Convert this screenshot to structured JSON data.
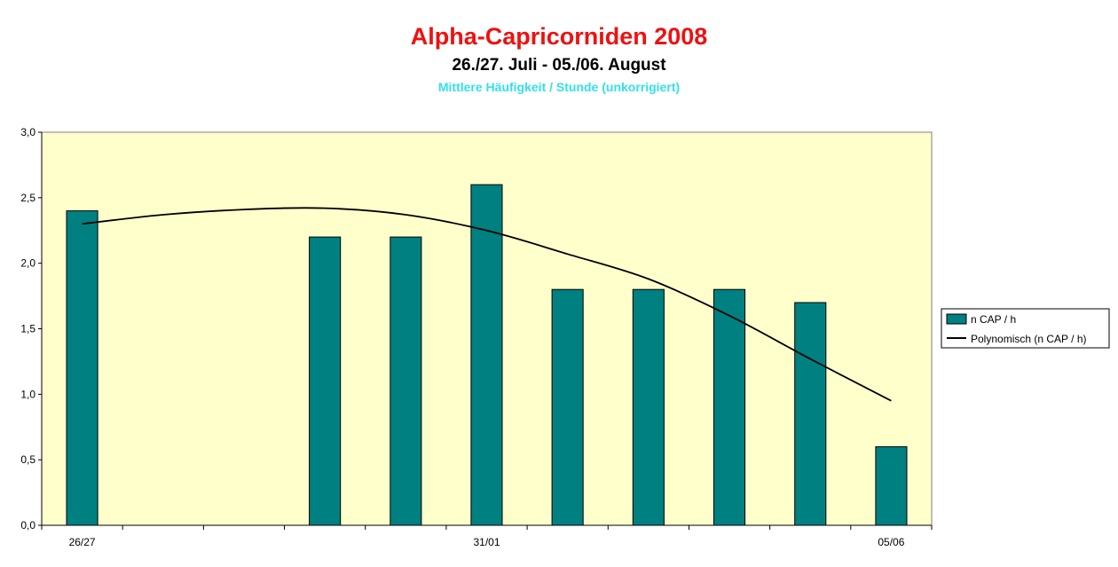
{
  "chart_data": {
    "type": "bar",
    "title": "Alpha-Capricorniden 2008",
    "subtitle": "26./27. Juli - 05./06. August",
    "subtitle2": "Mittlere Häufigkeit / Stunde (unkorrigiert)",
    "categories": [
      "26/27",
      "",
      "",
      "",
      "",
      "31/01",
      "",
      "",
      "",
      "",
      "05/06"
    ],
    "x_tick_labels": [
      "26/27",
      "31/01",
      "05/06"
    ],
    "series": [
      {
        "name": "n CAP / h",
        "values": [
          2.4,
          null,
          null,
          2.2,
          2.2,
          2.6,
          1.8,
          1.8,
          1.8,
          1.7,
          0.6
        ]
      }
    ],
    "trendline": {
      "name": "Polynomisch (n CAP / h)",
      "values": [
        2.3,
        2.37,
        2.41,
        2.42,
        2.37,
        2.25,
        2.07,
        1.88,
        1.6,
        1.27,
        0.95
      ]
    },
    "ylim": [
      0,
      3.0
    ],
    "yticks": [
      "0,0",
      "0,5",
      "1,0",
      "1,5",
      "2,0",
      "2,5",
      "3,0"
    ],
    "grid": false,
    "legend": "right",
    "colors": {
      "bar": "#008080",
      "plot_bg": "#ffffcc",
      "trend": "#000000",
      "title": "#ee1111",
      "subtitle2": "#33e0e8"
    }
  }
}
